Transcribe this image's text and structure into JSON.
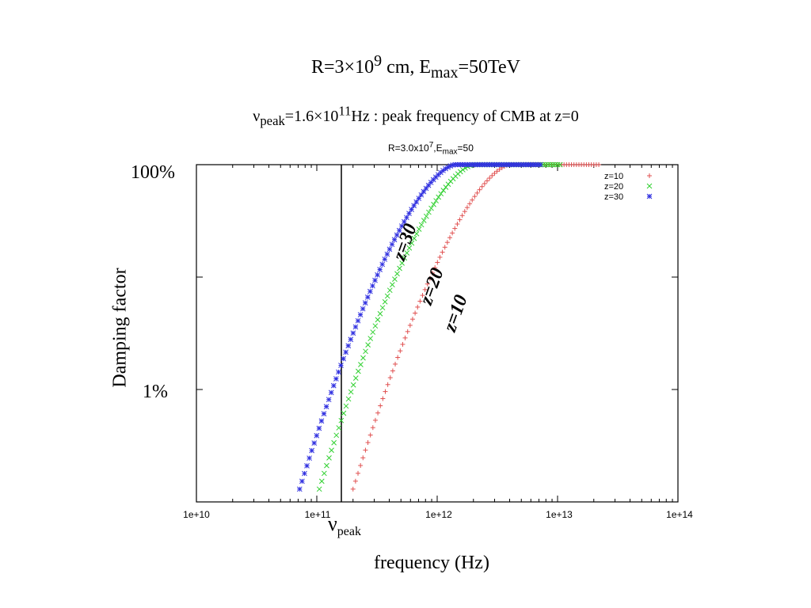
{
  "header": {
    "title_main": "R=3×10",
    "title_main_exp": "9",
    "title_main_mid": " cm, E",
    "title_main_sub": "max",
    "title_main_end": "=50TeV",
    "subtitle_nu": "ν",
    "subtitle_nu_sub": "peak",
    "subtitle_mid": "=1.6×10",
    "subtitle_exp": "11",
    "subtitle_end": "Hz : peak frequency of CMB at z=0"
  },
  "plot_title": {
    "prefix": "R=3.0x10",
    "exp": "7",
    "mid": ",E",
    "sub": "max",
    "end": "=50"
  },
  "annotations": {
    "nu_peak_symbol": "ν",
    "nu_peak_sub": "peak",
    "z30": "z=30",
    "z20": "z=20",
    "z10": "z=10"
  },
  "colors": {
    "z10": "#e05050",
    "z20": "#30d030",
    "z30": "#3030e0",
    "frame": "#000000",
    "vline": "#000000"
  },
  "chart_data": {
    "type": "scatter",
    "xscale": "log",
    "yscale": "log",
    "xlabel": "frequency (Hz)",
    "ylabel": "Damping factor",
    "xlim": [
      10000000000.0,
      100000000000000.0
    ],
    "ylim": [
      0.001,
      1.0
    ],
    "xticks": [
      {
        "value": 10000000000.0,
        "label": "1e+10"
      },
      {
        "value": 100000000000.0,
        "label": "1e+11"
      },
      {
        "value": 1000000000000.0,
        "label": "1e+12"
      },
      {
        "value": 10000000000000.0,
        "label": "1e+13"
      },
      {
        "value": 100000000000000.0,
        "label": "1e+14"
      }
    ],
    "yticks": [
      {
        "value": 1.0,
        "label": "100%"
      },
      {
        "value": 0.01,
        "label": "1%"
      }
    ],
    "ytick_marks": [
      1.0,
      0.1,
      0.01
    ],
    "vline": {
      "x": 160000000000.0,
      "label": "νpeak"
    },
    "legend": "top-right",
    "series": [
      {
        "name": "z=10",
        "marker": "+",
        "x_start": 200000000000.0,
        "x_end": 22000000000000.0,
        "points": 100,
        "x_knee": 4000000000000.0,
        "y_start": 0.0013
      },
      {
        "name": "z=20",
        "marker": "x",
        "x_start": 105000000000.0,
        "x_end": 10500000000000.0,
        "points": 100,
        "x_knee": 2000000000000.0,
        "y_start": 0.0013
      },
      {
        "name": "z=30",
        "marker": "*",
        "x_start": 72000000000.0,
        "x_end": 7200000000000.0,
        "points": 100,
        "x_knee": 1400000000000.0,
        "y_start": 0.0013
      }
    ]
  }
}
